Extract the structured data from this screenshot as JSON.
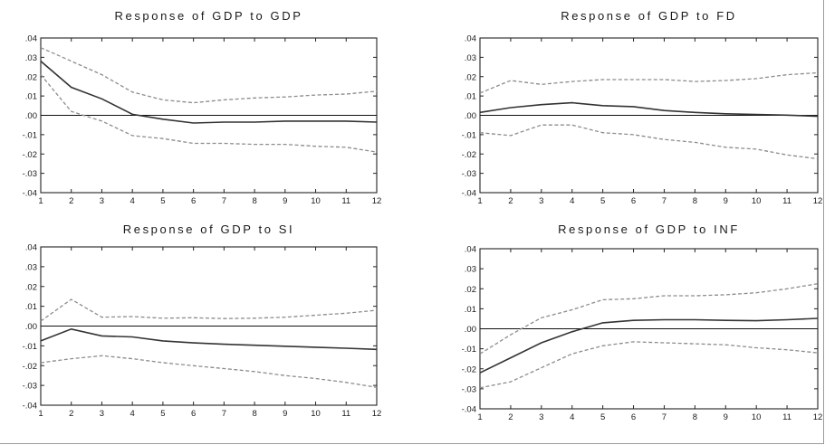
{
  "figure": {
    "panel_count": 4
  },
  "chart_data": [
    {
      "type": "line",
      "title": "Response of GDP to GDP",
      "x": [
        1,
        2,
        3,
        4,
        5,
        6,
        7,
        8,
        9,
        10,
        11,
        12
      ],
      "xticks": [
        "1",
        "2",
        "3",
        "4",
        "5",
        "6",
        "7",
        "8",
        "9",
        "10",
        "11",
        "12"
      ],
      "ylim": [
        -0.04,
        0.04
      ],
      "yticks": [
        ".04",
        ".03",
        ".02",
        ".01",
        ".00",
        "-.01",
        "-.02",
        "-.03",
        "-.04"
      ],
      "grid": false,
      "zero_line": true,
      "series": [
        {
          "values": [
            0.035,
            0.028,
            0.021,
            0.012,
            0.008,
            0.0065,
            0.008,
            0.009,
            0.0095,
            0.0105,
            0.011,
            0.0125
          ],
          "style": "dashed",
          "color": "#8c8c8c"
        },
        {
          "values": [
            0.028,
            0.0145,
            0.0085,
            0.0005,
            -0.002,
            -0.004,
            -0.0035,
            -0.0035,
            -0.003,
            -0.003,
            -0.003,
            -0.0035
          ],
          "style": "solid",
          "color": "#333333"
        },
        {
          "values": [
            0.021,
            0.002,
            -0.003,
            -0.0105,
            -0.012,
            -0.0145,
            -0.0145,
            -0.015,
            -0.015,
            -0.016,
            -0.0165,
            -0.019
          ],
          "style": "dashed",
          "color": "#8c8c8c"
        }
      ]
    },
    {
      "type": "line",
      "title": "Response of GDP to FD",
      "x": [
        1,
        2,
        3,
        4,
        5,
        6,
        7,
        8,
        9,
        10,
        11,
        12
      ],
      "xticks": [
        "1",
        "2",
        "3",
        "4",
        "5",
        "6",
        "7",
        "8",
        "9",
        "10",
        "11",
        "12"
      ],
      "ylim": [
        -0.04,
        0.04
      ],
      "yticks": [
        ".04",
        ".03",
        ".02",
        ".01",
        ".00",
        "-.01",
        "-.02",
        "-.03",
        "-.04"
      ],
      "grid": false,
      "zero_line": true,
      "series": [
        {
          "values": [
            0.0115,
            0.018,
            0.016,
            0.0175,
            0.0185,
            0.0185,
            0.0185,
            0.0175,
            0.018,
            0.019,
            0.021,
            0.022
          ],
          "style": "dashed",
          "color": "#8c8c8c"
        },
        {
          "values": [
            0.0015,
            0.004,
            0.0055,
            0.0065,
            0.005,
            0.0045,
            0.0025,
            0.0015,
            0.0008,
            0.0004,
            0.0001,
            -0.0005
          ],
          "style": "solid",
          "color": "#333333"
        },
        {
          "values": [
            -0.009,
            -0.0105,
            -0.005,
            -0.005,
            -0.009,
            -0.01,
            -0.0125,
            -0.014,
            -0.0165,
            -0.0175,
            -0.0205,
            -0.0225
          ],
          "style": "dashed",
          "color": "#8c8c8c"
        }
      ]
    },
    {
      "type": "line",
      "title": "Response of GDP to SI",
      "x": [
        1,
        2,
        3,
        4,
        5,
        6,
        7,
        8,
        9,
        10,
        11,
        12
      ],
      "xticks": [
        "1",
        "2",
        "3",
        "4",
        "5",
        "6",
        "7",
        "8",
        "9",
        "10",
        "11",
        "12"
      ],
      "ylim": [
        -0.04,
        0.04
      ],
      "yticks": [
        ".04",
        ".03",
        ".02",
        ".01",
        ".00",
        "-.01",
        "-.02",
        "-.03",
        "-.04"
      ],
      "grid": false,
      "zero_line": true,
      "series": [
        {
          "values": [
            0.0025,
            0.0135,
            0.0045,
            0.0048,
            0.004,
            0.0042,
            0.0038,
            0.004,
            0.0045,
            0.0055,
            0.0065,
            0.008
          ],
          "style": "dashed",
          "color": "#8c8c8c"
        },
        {
          "values": [
            -0.0075,
            -0.0015,
            -0.005,
            -0.0055,
            -0.0075,
            -0.0085,
            -0.0092,
            -0.0097,
            -0.0102,
            -0.0107,
            -0.0112,
            -0.0118
          ],
          "style": "solid",
          "color": "#333333"
        },
        {
          "values": [
            -0.0185,
            -0.0165,
            -0.015,
            -0.0165,
            -0.0185,
            -0.02,
            -0.0215,
            -0.023,
            -0.025,
            -0.0265,
            -0.0285,
            -0.031
          ],
          "style": "dashed",
          "color": "#8c8c8c"
        }
      ]
    },
    {
      "type": "line",
      "title": "Response of GDP to INF",
      "x": [
        1,
        2,
        3,
        4,
        5,
        6,
        7,
        8,
        9,
        10,
        11,
        12
      ],
      "xticks": [
        "1",
        "2",
        "3",
        "4",
        "5",
        "6",
        "7",
        "8",
        "9",
        "10",
        "11",
        "12"
      ],
      "ylim": [
        -0.04,
        0.04
      ],
      "yticks": [
        ".04",
        ".03",
        ".02",
        ".01",
        ".00",
        "-.01",
        "-.02",
        "-.03",
        "-.04"
      ],
      "grid": false,
      "zero_line": true,
      "series": [
        {
          "values": [
            -0.0125,
            -0.003,
            0.0055,
            0.0095,
            0.0145,
            0.015,
            0.0165,
            0.0165,
            0.017,
            0.018,
            0.02,
            0.0225
          ],
          "style": "dashed",
          "color": "#8c8c8c"
        },
        {
          "values": [
            -0.022,
            -0.0145,
            -0.007,
            -0.0015,
            0.003,
            0.0042,
            0.0045,
            0.0045,
            0.0042,
            0.004,
            0.0045,
            0.0052
          ],
          "style": "solid",
          "color": "#333333"
        },
        {
          "values": [
            -0.0295,
            -0.0265,
            -0.0195,
            -0.0125,
            -0.0085,
            -0.0065,
            -0.007,
            -0.0075,
            -0.008,
            -0.0095,
            -0.0105,
            -0.012
          ],
          "style": "dashed",
          "color": "#8c8c8c"
        }
      ]
    }
  ]
}
